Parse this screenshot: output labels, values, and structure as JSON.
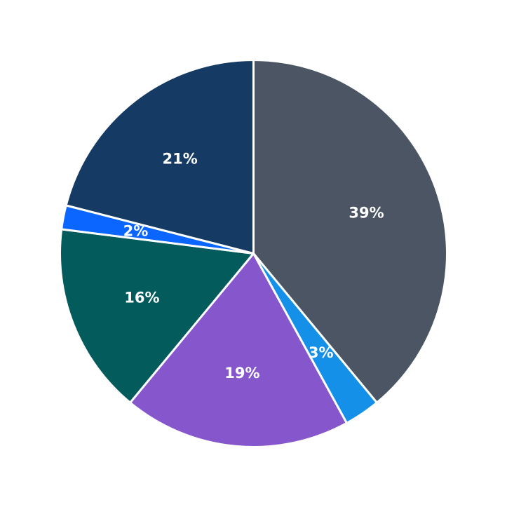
{
  "chart_data": {
    "type": "pie",
    "start_angle": "12 o'clock",
    "direction": "clockwise",
    "slices": [
      {
        "value": 39,
        "label": "39%",
        "color": "#4b5563"
      },
      {
        "value": 3,
        "label": "3%",
        "color": "#1590e8"
      },
      {
        "value": 19,
        "label": "19%",
        "color": "#8657cc"
      },
      {
        "value": 16,
        "label": "16%",
        "color": "#045b5b"
      },
      {
        "value": 2,
        "label": "2%",
        "color": "#0a66ff"
      },
      {
        "value": 21,
        "label": "21%",
        "color": "#153a63"
      }
    ]
  }
}
